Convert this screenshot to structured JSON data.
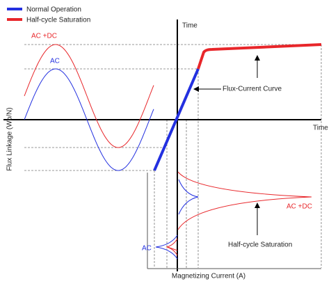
{
  "legend": [
    {
      "label": "Normal Operation"
    },
    {
      "label": "Half-cycle Saturation"
    }
  ],
  "axes": {
    "vertical_label": "Time",
    "horizontal_label": "Time",
    "flux_label": "Flux Linkage (Wb/N)",
    "current_label": "Magnetizing Current (A)"
  },
  "annotations": {
    "flux_ac_dc": "AC +DC",
    "flux_ac": "AC",
    "curve": "Flux-Current Curve",
    "current_ac_dc": "AC +DC",
    "saturation": "Half-cycle Saturation",
    "current_ac": "AC"
  }
}
